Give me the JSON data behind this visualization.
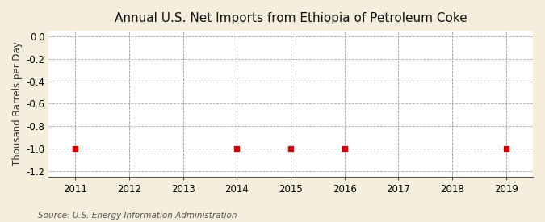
{
  "title": "Annual U.S. Net Imports from Ethiopia of Petroleum Coke",
  "ylabel": "Thousand Barrels per Day",
  "source": "Source: U.S. Energy Information Administration",
  "xlim": [
    2010.5,
    2019.5
  ],
  "ylim": [
    -1.25,
    0.05
  ],
  "yticks": [
    0.0,
    -0.2,
    -0.4,
    -0.6,
    -0.8,
    -1.0,
    -1.2
  ],
  "xticks": [
    2011,
    2012,
    2013,
    2014,
    2015,
    2016,
    2017,
    2018,
    2019
  ],
  "data_x": [
    2011,
    2014,
    2015,
    2016,
    2019
  ],
  "data_y": [
    -1.0,
    -1.0,
    -1.0,
    -1.0,
    -1.0
  ],
  "marker_color": "#cc0000",
  "marker_style": "s",
  "marker_size": 4,
  "background_color": "#f5eedc",
  "plot_bg_color": "#ffffff",
  "grid_color": "#aaaaaa",
  "grid_linestyle": "--",
  "title_fontsize": 11,
  "label_fontsize": 8.5,
  "tick_fontsize": 8.5,
  "source_fontsize": 7.5
}
